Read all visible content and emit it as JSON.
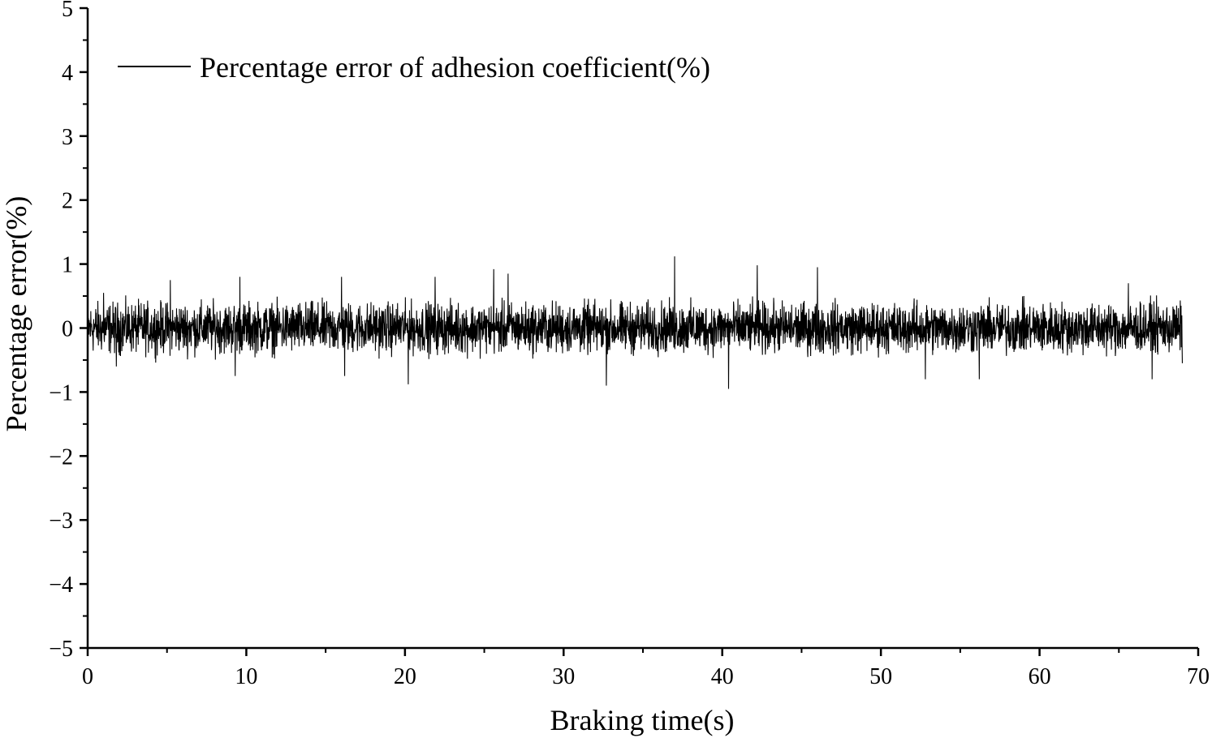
{
  "chart_data": {
    "type": "line",
    "title": "",
    "xlabel": "Braking time(s)",
    "ylabel": "Percentage error(%)",
    "xlim": [
      0,
      70
    ],
    "ylim": [
      -5,
      5
    ],
    "x_ticks": [
      0,
      10,
      20,
      30,
      40,
      50,
      60,
      70
    ],
    "x_tick_labels": [
      "0",
      "10",
      "20",
      "30",
      "40",
      "50",
      "60",
      "70"
    ],
    "y_ticks": [
      5,
      4,
      3,
      2,
      1,
      0,
      -1,
      -2,
      -3,
      -4,
      -5
    ],
    "y_tick_labels": [
      "5",
      "4",
      "3",
      "2",
      "1",
      "0",
      "−1",
      "−2",
      "−3",
      "−4",
      "−5"
    ],
    "grid": false,
    "legend_position": "top-left",
    "series": [
      {
        "name": "Percentage error of adhesion coefficient(%)",
        "color": "#000000",
        "x_range": [
          0,
          69
        ],
        "noise_band": [
          -0.6,
          0.6
        ],
        "mean": 0,
        "points": [
          [
            0,
            0.0
          ],
          [
            1.0,
            0.55
          ],
          [
            1.8,
            -0.6
          ],
          [
            5.2,
            0.75
          ],
          [
            9.3,
            -0.75
          ],
          [
            9.6,
            0.8
          ],
          [
            16.0,
            0.8
          ],
          [
            16.2,
            -0.75
          ],
          [
            20.2,
            -0.88
          ],
          [
            21.9,
            0.8
          ],
          [
            25.6,
            0.92
          ],
          [
            26.5,
            0.85
          ],
          [
            32.7,
            -0.9
          ],
          [
            37.0,
            1.12
          ],
          [
            40.4,
            -0.95
          ],
          [
            42.2,
            0.98
          ],
          [
            46.0,
            0.95
          ],
          [
            52.8,
            -0.8
          ],
          [
            56.2,
            -0.8
          ],
          [
            65.6,
            0.7
          ],
          [
            67.1,
            -0.8
          ],
          [
            69.0,
            -0.55
          ]
        ]
      }
    ]
  }
}
